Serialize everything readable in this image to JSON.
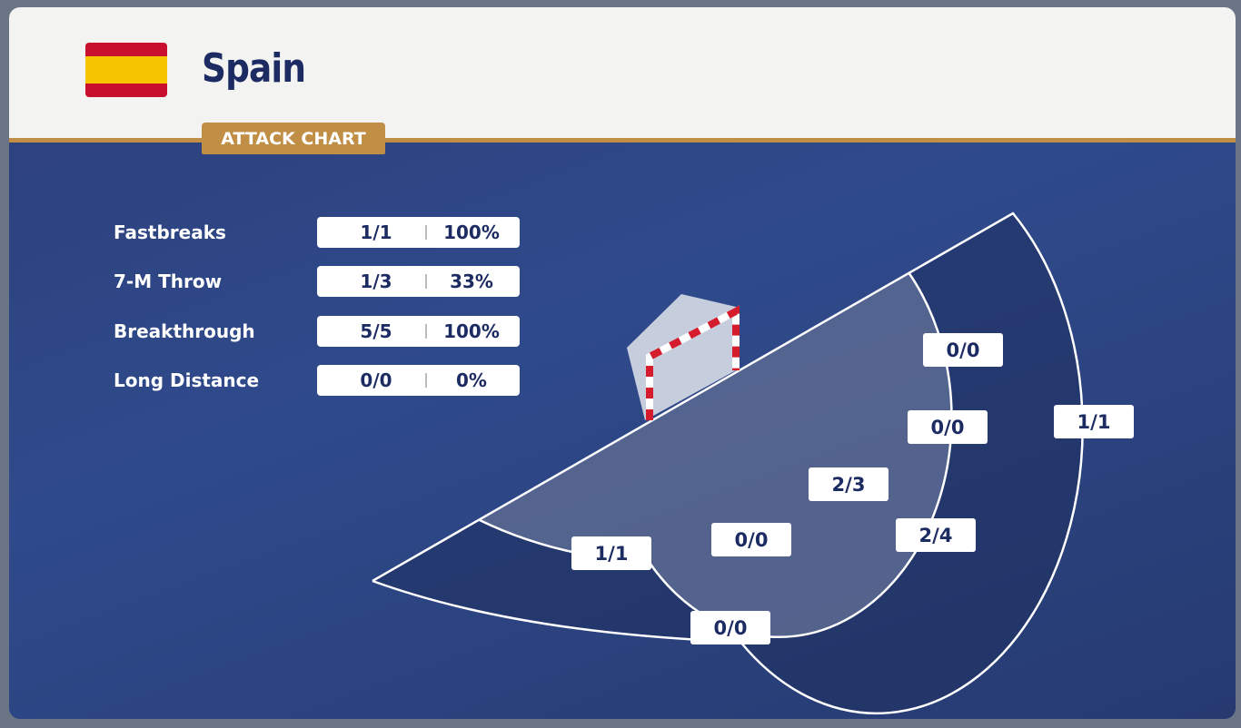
{
  "header": {
    "team": "Spain",
    "tab": "ATTACK CHART"
  },
  "stats": [
    {
      "label": "Fastbreaks",
      "ratio": "1/1",
      "pct": "100%"
    },
    {
      "label": "7-M Throw",
      "ratio": "1/3",
      "pct": "33%"
    },
    {
      "label": "Breakthrough",
      "ratio": "5/5",
      "pct": "100%"
    },
    {
      "label": "Long Distance",
      "ratio": "0/0",
      "pct": "0%"
    }
  ],
  "zones": [
    "0/0",
    "0/0",
    "1/1",
    "2/3",
    "0/0",
    "1/1",
    "2/4",
    "0/0"
  ]
}
